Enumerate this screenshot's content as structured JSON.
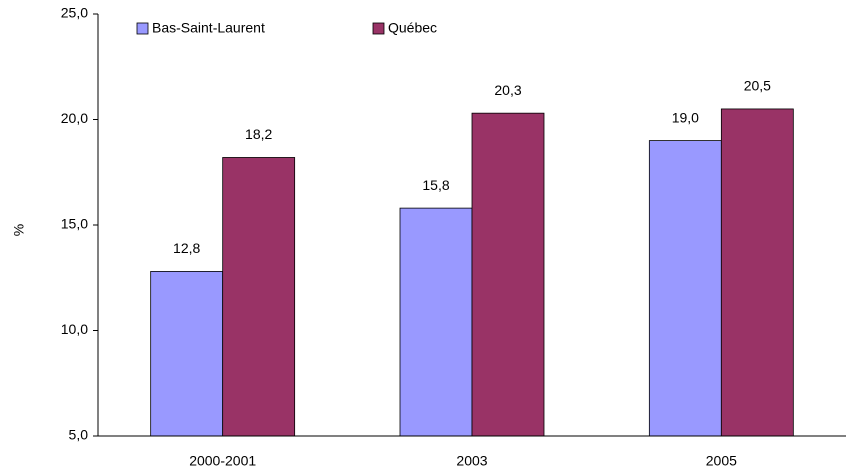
{
  "chart_data": {
    "type": "bar",
    "y_label": "%",
    "categories": [
      "2000-2001",
      "2003",
      "2005"
    ],
    "series": [
      {
        "name": "Bas-Saint-Laurent",
        "color": "#9999ff",
        "values": [
          12.8,
          15.8,
          19.0
        ],
        "value_labels": [
          "12,8",
          "15,8",
          "19,0"
        ]
      },
      {
        "name": "Québec",
        "color": "#993366",
        "values": [
          18.2,
          20.3,
          20.5
        ],
        "value_labels": [
          "18,2",
          "20,3",
          "20,5"
        ]
      }
    ],
    "ylim": [
      5,
      25
    ],
    "yticks": [
      {
        "value": 5,
        "label": "5,0"
      },
      {
        "value": 10,
        "label": "10,0"
      },
      {
        "value": 15,
        "label": "15,0"
      },
      {
        "value": 20,
        "label": "20,0"
      },
      {
        "value": 25,
        "label": "25,0"
      }
    ],
    "grid": false,
    "legend": "top"
  }
}
